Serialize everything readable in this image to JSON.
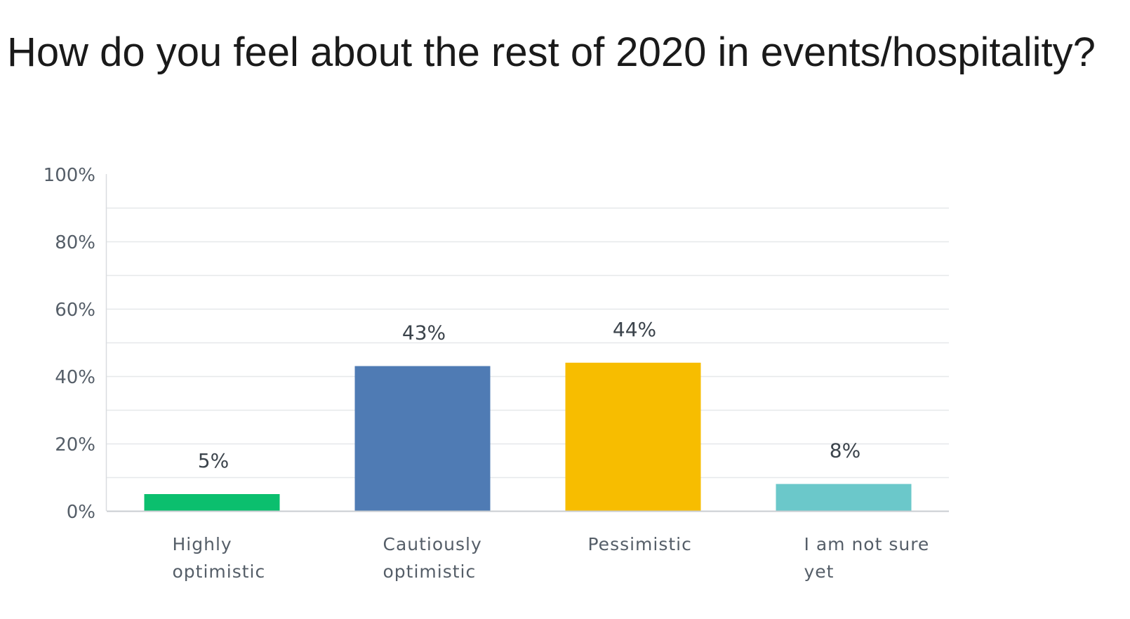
{
  "chart_data": {
    "type": "bar",
    "title": "How do you feel about the rest of 2020 in events/hospitality?",
    "categories": [
      [
        "Highly",
        "optimistic"
      ],
      [
        "Cautiously",
        "optimistic"
      ],
      [
        "Pessimistic"
      ],
      [
        "I am not sure",
        "yet"
      ]
    ],
    "values": [
      5,
      43,
      44,
      8
    ],
    "value_labels": [
      "5%",
      "43%",
      "44%",
      "8%"
    ],
    "colors": [
      "#0bbf6e",
      "#4f7bb4",
      "#f7bd00",
      "#6bc8ca"
    ],
    "ylim": [
      0,
      100
    ],
    "yticks": [
      0,
      20,
      40,
      60,
      80,
      100
    ],
    "ytick_labels": [
      "0%",
      "20%",
      "40%",
      "60%",
      "80%",
      "100%"
    ],
    "grid": true,
    "legend": "none"
  }
}
